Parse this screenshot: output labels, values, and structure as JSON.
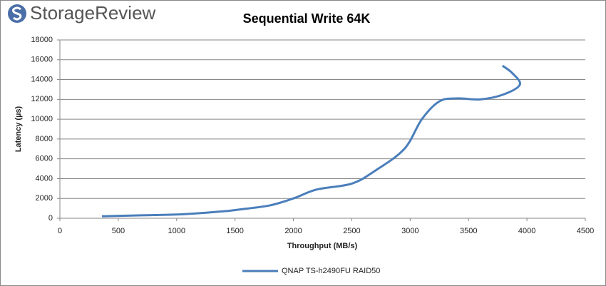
{
  "chart_data": {
    "type": "line",
    "brand": "StorageReview",
    "title": "Sequential Write 64K",
    "x_label": "Throughput (MB/s)",
    "y_label": "Latency (µs)",
    "series": [
      {
        "name": "QNAP TS-h2490FU RAID50",
        "color": "#4a7ebb",
        "x": [
          360,
          700,
          1050,
          1400,
          1550,
          1800,
          2000,
          2200,
          2500,
          2700,
          2950,
          3100,
          3250,
          3400,
          3600,
          3800,
          3940,
          3870,
          3790
        ],
        "values": [
          200,
          300,
          400,
          700,
          900,
          1300,
          2000,
          2900,
          3500,
          4800,
          7000,
          10000,
          11800,
          12100,
          12000,
          12500,
          13500,
          14700,
          15400
        ]
      }
    ],
    "xlim": [
      0,
      4500
    ],
    "xticks": [
      0,
      500,
      1000,
      1500,
      2000,
      2500,
      3000,
      3500,
      4000,
      4500
    ],
    "ylim": [
      0,
      18000
    ],
    "yticks": [
      0,
      2000,
      4000,
      6000,
      8000,
      10000,
      12000,
      14000,
      16000,
      18000
    ],
    "grid": true,
    "legend": "bottom"
  }
}
